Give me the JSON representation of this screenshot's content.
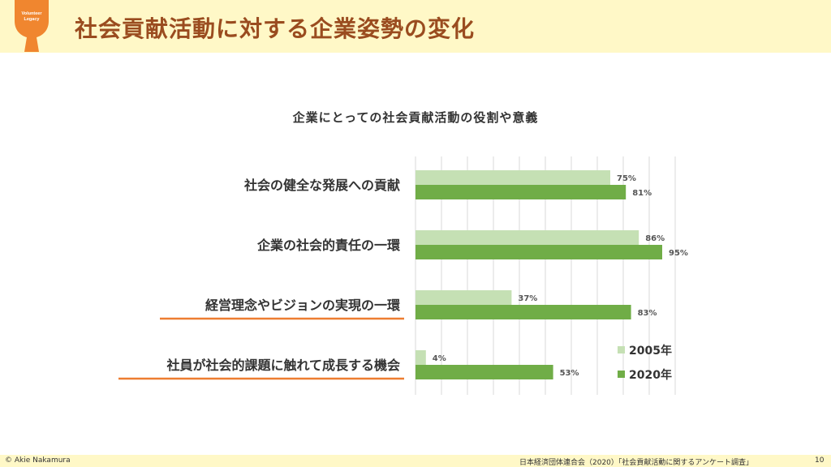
{
  "header": {
    "title": "社会貢献活動に対する企業姿勢の変化",
    "logo_text_line1": "Volunteer",
    "logo_text_line2": "Legacy"
  },
  "footer": {
    "copyright": "© Akie Nakamura",
    "source": "日本経済団体連合会（2020）「社会貢献活動に関するアンケート調査」",
    "page_number": "10"
  },
  "colors": {
    "header_bg": "#fff8c7",
    "title": "#9a4c1f",
    "logo": "#f0862f",
    "series_2005": "#c5e0b4",
    "series_2020": "#70ad47",
    "underline": "#ed7d31"
  },
  "chart_data": {
    "type": "bar",
    "orientation": "horizontal",
    "title": "企業にとっての社会貢献活動の役割や意義",
    "categories": [
      "社会の健全な発展への貢献",
      "企業の社会的責任の一環",
      "経営理念やビジョンの実現の一環",
      "社員が社会的課題に触れて成長する機会"
    ],
    "series": [
      {
        "name": "2005年",
        "values": [
          75,
          86,
          37,
          4
        ],
        "labels": [
          "75%",
          "86%",
          "37%",
          "4%"
        ]
      },
      {
        "name": "2020年",
        "values": [
          81,
          95,
          83,
          53
        ],
        "labels": [
          "81%",
          "95%",
          "83%",
          "53%"
        ]
      }
    ],
    "highlighted_categories": [
      2,
      3
    ],
    "xlim": [
      0,
      100
    ],
    "grid": true,
    "legend_position": "bottom-right"
  }
}
